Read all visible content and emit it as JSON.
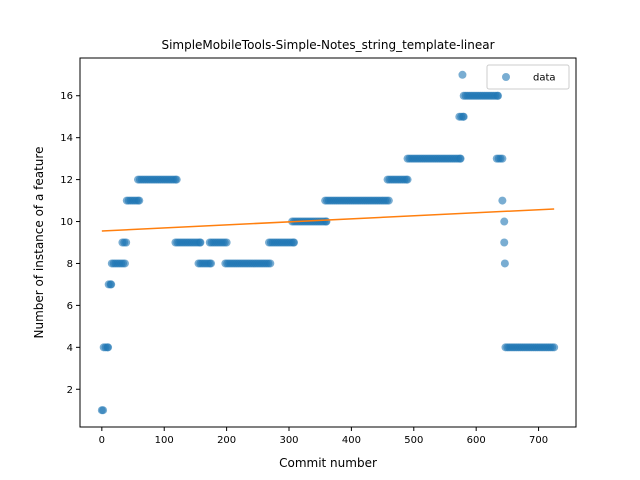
{
  "chart_data": {
    "type": "scatter",
    "title": "SimpleMobileTools-Simple-Notes_string_template-linear",
    "xlabel": "Commit number",
    "ylabel": "Number of instance of a feature",
    "xlim": [
      -35,
      760
    ],
    "ylim": [
      0.2,
      17.8
    ],
    "xticks": [
      0,
      100,
      200,
      300,
      400,
      500,
      600,
      700
    ],
    "yticks": [
      2,
      4,
      6,
      8,
      10,
      12,
      14,
      16
    ],
    "grid": false,
    "legend": {
      "placement": "top-right",
      "entries": [
        "data"
      ]
    },
    "series": [
      {
        "name": "data",
        "kind": "scatter",
        "color": "#1f77b4",
        "opacity": 0.6,
        "segments": [
          {
            "x_start": 0,
            "x_end": 2,
            "y": 1
          },
          {
            "x_start": 3,
            "x_end": 10,
            "y": 4
          },
          {
            "x_start": 11,
            "x_end": 15,
            "y": 7
          },
          {
            "x_start": 16,
            "x_end": 37,
            "y": 8
          },
          {
            "x_start": 33,
            "x_end": 39,
            "y": 9
          },
          {
            "x_start": 40,
            "x_end": 60,
            "y": 11
          },
          {
            "x_start": 58,
            "x_end": 120,
            "y": 12
          },
          {
            "x_start": 118,
            "x_end": 158,
            "y": 9
          },
          {
            "x_start": 155,
            "x_end": 175,
            "y": 8
          },
          {
            "x_start": 173,
            "x_end": 200,
            "y": 9
          },
          {
            "x_start": 198,
            "x_end": 270,
            "y": 8
          },
          {
            "x_start": 268,
            "x_end": 308,
            "y": 9
          },
          {
            "x_start": 305,
            "x_end": 360,
            "y": 10
          },
          {
            "x_start": 358,
            "x_end": 460,
            "y": 11
          },
          {
            "x_start": 458,
            "x_end": 490,
            "y": 12
          },
          {
            "x_start": 490,
            "x_end": 575,
            "y": 13
          },
          {
            "x_start": 573,
            "x_end": 580,
            "y": 15
          },
          {
            "x_start": 578,
            "x_end": 578,
            "y": 17
          },
          {
            "x_start": 580,
            "x_end": 635,
            "y": 16
          },
          {
            "x_start": 633,
            "x_end": 642,
            "y": 13
          },
          {
            "x_start": 642,
            "x_end": 642,
            "y": 11
          },
          {
            "x_start": 645,
            "x_end": 645,
            "y": 10
          },
          {
            "x_start": 645,
            "x_end": 645,
            "y": 9
          },
          {
            "x_start": 646,
            "x_end": 646,
            "y": 8
          },
          {
            "x_start": 647,
            "x_end": 725,
            "y": 4
          }
        ]
      },
      {
        "name": "linear fit",
        "kind": "line",
        "color": "#ff7f0e",
        "x": [
          0,
          725
        ],
        "y": [
          9.55,
          10.6
        ]
      }
    ]
  }
}
